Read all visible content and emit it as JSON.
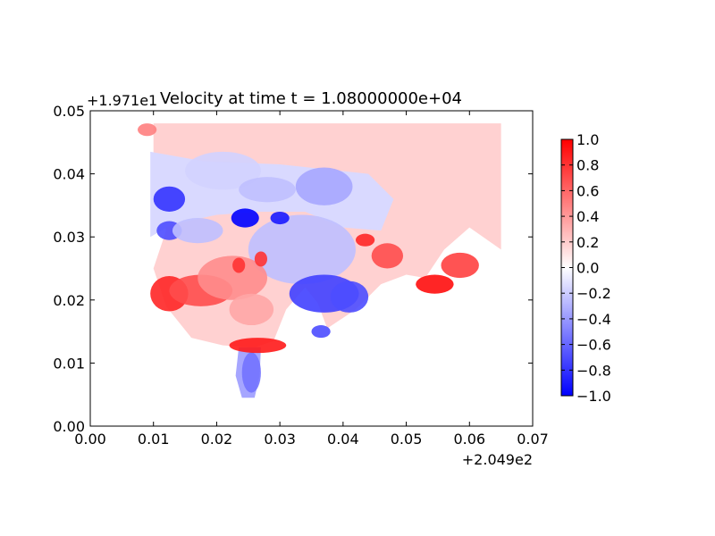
{
  "chart_data": {
    "type": "heatmap",
    "title": "Velocity at time t = 1.08000000e+04",
    "xlabel": "",
    "ylabel": "",
    "xlim": [
      0.0,
      0.07
    ],
    "ylim": [
      0.0,
      0.05
    ],
    "x_offset_label": "+2.049e2",
    "y_offset_label": "+1.971e1",
    "x_ticks": [
      0.0,
      0.01,
      0.02,
      0.03,
      0.04,
      0.05,
      0.06,
      0.07
    ],
    "x_tick_labels": [
      "0.00",
      "0.01",
      "0.02",
      "0.03",
      "0.04",
      "0.05",
      "0.06",
      "0.07"
    ],
    "y_ticks": [
      0.0,
      0.01,
      0.02,
      0.03,
      0.04,
      0.05
    ],
    "y_tick_labels": [
      "0.00",
      "0.01",
      "0.02",
      "0.03",
      "0.04",
      "0.05"
    ],
    "colormap": "bwr",
    "colorbar": {
      "min": -1.0,
      "max": 1.0,
      "ticks": [
        1.0,
        0.8,
        0.6,
        0.4,
        0.2,
        0.0,
        -0.2,
        -0.4,
        -0.6,
        -0.8,
        -1.0
      ],
      "tick_labels": [
        "1.0",
        "0.8",
        "0.6",
        "0.4",
        "0.2",
        "0.0",
        "−0.2",
        "−0.4",
        "−0.6",
        "−0.8",
        "−1.0"
      ]
    },
    "fields": {
      "grid_domain": {
        "x": [
          0.005,
          0.065
        ],
        "y": [
          0.0,
          0.048
        ]
      },
      "coast_lower": [
        [
          0.01,
          0.04
        ],
        [
          0.012,
          0.031
        ],
        [
          0.01,
          0.025
        ],
        [
          0.012,
          0.019
        ],
        [
          0.016,
          0.014
        ],
        [
          0.021,
          0.0128
        ],
        [
          0.026,
          0.0125
        ],
        [
          0.029,
          0.0135
        ],
        [
          0.031,
          0.0185
        ],
        [
          0.034,
          0.022
        ],
        [
          0.036,
          0.0195
        ],
        [
          0.0375,
          0.0155
        ],
        [
          0.042,
          0.0185
        ],
        [
          0.046,
          0.0225
        ],
        [
          0.05,
          0.024
        ],
        [
          0.053,
          0.0235
        ],
        [
          0.056,
          0.028
        ],
        [
          0.06,
          0.0315
        ],
        [
          0.065,
          0.028
        ]
      ],
      "inland_tail": [
        [
          0.0235,
          0.0125
        ],
        [
          0.023,
          0.008
        ],
        [
          0.024,
          0.0045
        ],
        [
          0.026,
          0.0045
        ],
        [
          0.0268,
          0.008
        ],
        [
          0.027,
          0.0125
        ]
      ],
      "blobs": [
        {
          "x": 0.0335,
          "y": 0.028,
          "rx": 0.0085,
          "ry": 0.0055,
          "v": -0.25
        },
        {
          "x": 0.037,
          "y": 0.021,
          "rx": 0.0055,
          "ry": 0.003,
          "v": -0.75
        },
        {
          "x": 0.041,
          "y": 0.0205,
          "rx": 0.003,
          "ry": 0.0025,
          "v": -0.7
        },
        {
          "x": 0.0245,
          "y": 0.033,
          "rx": 0.0022,
          "ry": 0.0015,
          "v": -1.0
        },
        {
          "x": 0.03,
          "y": 0.033,
          "rx": 0.0015,
          "ry": 0.001,
          "v": -0.9
        },
        {
          "x": 0.0125,
          "y": 0.036,
          "rx": 0.0025,
          "ry": 0.002,
          "v": -0.8
        },
        {
          "x": 0.0125,
          "y": 0.031,
          "rx": 0.002,
          "ry": 0.0015,
          "v": -0.7
        },
        {
          "x": 0.0255,
          "y": 0.0085,
          "rx": 0.0015,
          "ry": 0.0032,
          "v": -0.55
        },
        {
          "x": 0.0365,
          "y": 0.015,
          "rx": 0.0015,
          "ry": 0.001,
          "v": -0.7
        },
        {
          "x": 0.021,
          "y": 0.0405,
          "rx": 0.006,
          "ry": 0.003,
          "v": -0.18
        },
        {
          "x": 0.028,
          "y": 0.0375,
          "rx": 0.0045,
          "ry": 0.002,
          "v": -0.25
        },
        {
          "x": 0.037,
          "y": 0.038,
          "rx": 0.0045,
          "ry": 0.003,
          "v": -0.35
        },
        {
          "x": 0.017,
          "y": 0.031,
          "rx": 0.004,
          "ry": 0.002,
          "v": -0.25
        },
        {
          "x": 0.0125,
          "y": 0.021,
          "rx": 0.003,
          "ry": 0.0028,
          "v": 0.85
        },
        {
          "x": 0.0175,
          "y": 0.0215,
          "rx": 0.005,
          "ry": 0.0025,
          "v": 0.7
        },
        {
          "x": 0.0225,
          "y": 0.0235,
          "rx": 0.0055,
          "ry": 0.0035,
          "v": 0.45
        },
        {
          "x": 0.0255,
          "y": 0.0185,
          "rx": 0.0035,
          "ry": 0.0025,
          "v": 0.35
        },
        {
          "x": 0.0265,
          "y": 0.0128,
          "rx": 0.0045,
          "ry": 0.0012,
          "v": 0.9
        },
        {
          "x": 0.0235,
          "y": 0.0255,
          "rx": 0.001,
          "ry": 0.0012,
          "v": 0.8
        },
        {
          "x": 0.027,
          "y": 0.0265,
          "rx": 0.001,
          "ry": 0.0012,
          "v": 0.8
        },
        {
          "x": 0.0545,
          "y": 0.0225,
          "rx": 0.003,
          "ry": 0.0015,
          "v": 0.95
        },
        {
          "x": 0.0585,
          "y": 0.0255,
          "rx": 0.003,
          "ry": 0.002,
          "v": 0.75
        },
        {
          "x": 0.047,
          "y": 0.027,
          "rx": 0.0025,
          "ry": 0.002,
          "v": 0.7
        },
        {
          "x": 0.0435,
          "y": 0.0295,
          "rx": 0.0015,
          "ry": 0.001,
          "v": 0.85
        },
        {
          "x": 0.009,
          "y": 0.047,
          "rx": 0.0015,
          "ry": 0.001,
          "v": 0.5
        }
      ],
      "background_ocean": 0.18,
      "background_land": 0.0,
      "background_north_lagoon": -0.15
    }
  }
}
